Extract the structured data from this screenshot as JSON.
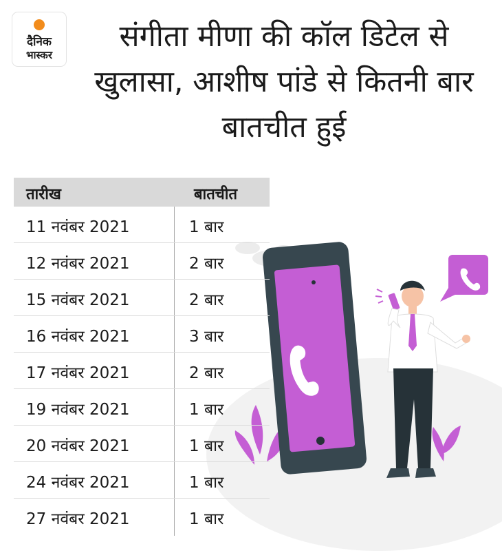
{
  "logo": {
    "line1": "दैनिक",
    "line2": "भास्कर",
    "sun_color": "#f28c1b"
  },
  "headline": "संगीता मीणा की कॉल डिटेल से खुलासा, आशीष पांडे से कितनी बार बातचीत हुई",
  "table": {
    "headers": [
      "तारीख",
      "बातचीत"
    ],
    "rows": [
      [
        "11 नवंबर 2021",
        "1 बार"
      ],
      [
        "12 नवंबर 2021",
        "2 बार"
      ],
      [
        "15 नवंबर 2021",
        "2 बार"
      ],
      [
        "16 नवंबर 2021",
        "3 बार"
      ],
      [
        "17 नवंबर 2021",
        "2 बार"
      ],
      [
        "19 नवंबर 2021",
        "1 बार"
      ],
      [
        "20 नवंबर 2021",
        "1 बार"
      ],
      [
        "24 नवंबर 2021",
        "1 बार"
      ],
      [
        "27 नवंबर 2021",
        "1 बार"
      ]
    ]
  },
  "illustration": {
    "subject": "man talking on phone beside large smartphone with call icon",
    "accent_color": "#c45ed4",
    "icons": [
      "phone-icon",
      "chat-bubble-phone-icon",
      "cloud-icon",
      "plant-icon"
    ]
  }
}
